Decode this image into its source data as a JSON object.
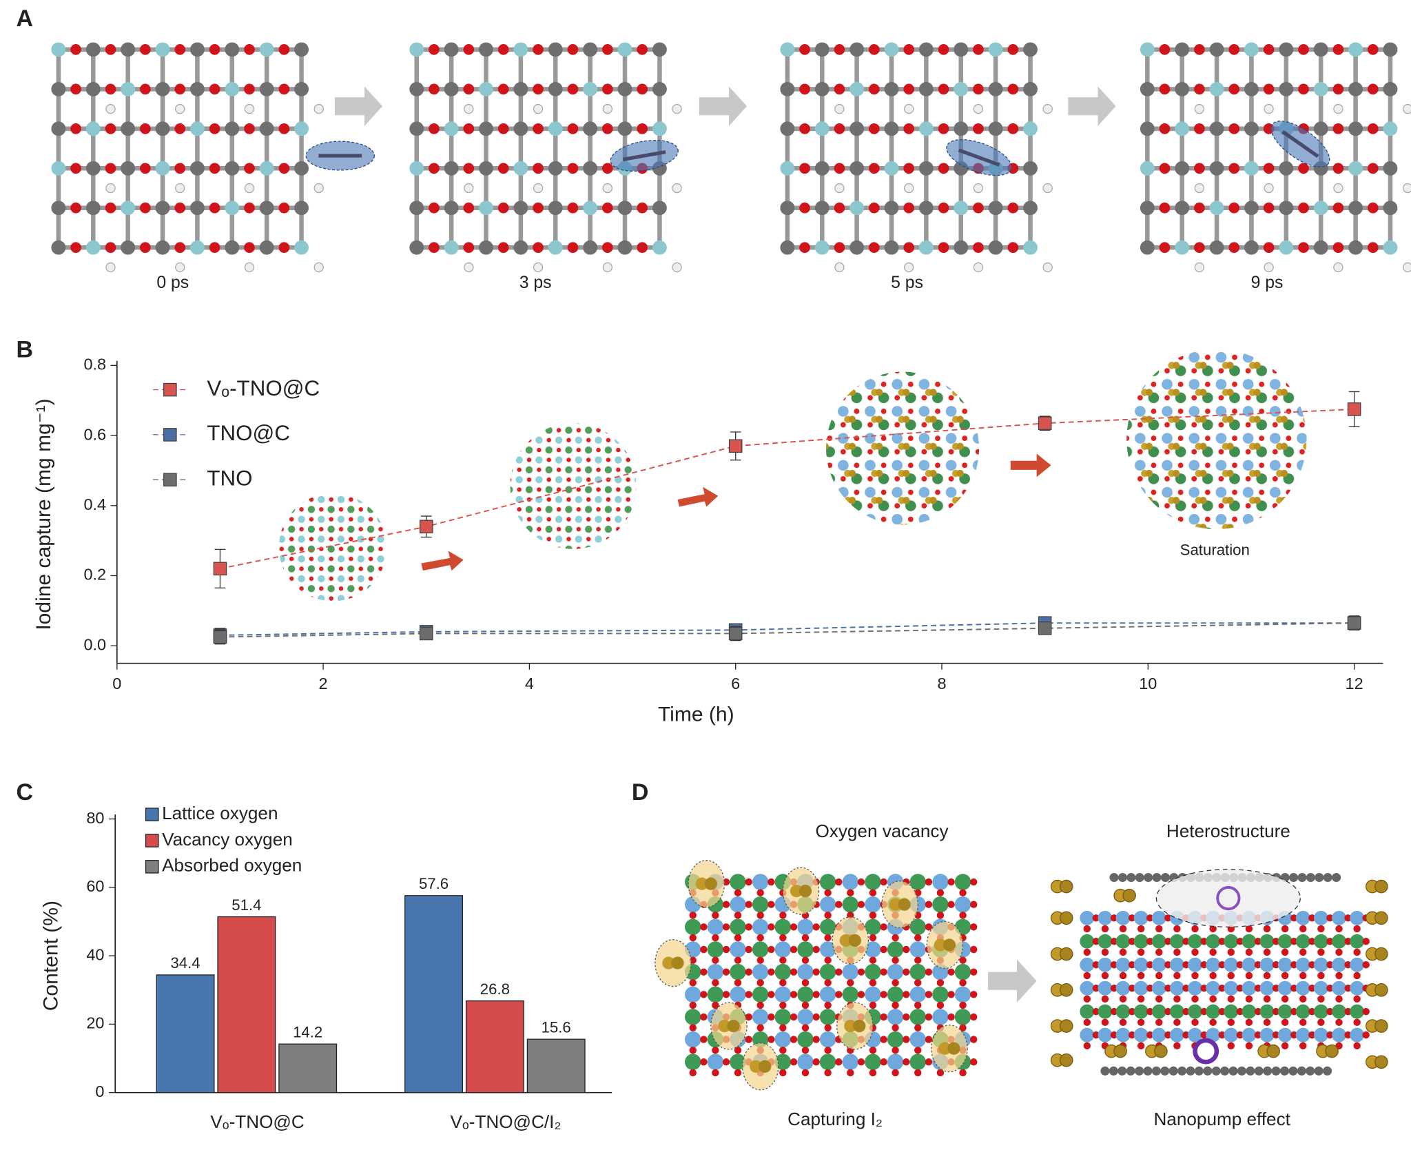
{
  "panel_labels": [
    "A",
    "B",
    "C",
    "D"
  ],
  "panel_a": {
    "labels": [
      "0 ps",
      "3 ps",
      "5 ps",
      "9 ps"
    ]
  },
  "panel_d": {
    "labels": [
      "Oxygen vacancy",
      "Heterostructure",
      "Capturing I₂",
      "Nanopump effect"
    ]
  },
  "chart_data": [
    {
      "type": "line",
      "xlabel": "Time (h)",
      "ylabel": "Iodine capture (mg mg⁻¹)",
      "x": [
        1,
        3,
        6,
        9,
        12
      ],
      "series": [
        {
          "name": "Vₒ-TNO@C",
          "color": "#d9534f",
          "values": [
            0.22,
            0.34,
            0.57,
            0.635,
            0.675
          ],
          "errors": [
            0.055,
            0.03,
            0.04,
            0.02,
            0.05
          ]
        },
        {
          "name": "TNO@C",
          "color": "#4a6fa5",
          "values": [
            0.03,
            0.04,
            0.045,
            0.065,
            0.065
          ],
          "errors": [
            0.02,
            0.01,
            0.01,
            0.01,
            0.02
          ]
        },
        {
          "name": "TNO",
          "color": "#6d6d6d",
          "values": [
            0.025,
            0.035,
            0.035,
            0.05,
            0.065
          ],
          "errors": [
            0.02,
            0.01,
            0.02,
            0.01,
            0.02
          ]
        }
      ],
      "xlim": [
        0,
        12.28
      ],
      "ylim": [
        -0.05,
        0.8
      ],
      "xticks": [
        0,
        2,
        4,
        6,
        8,
        10,
        12
      ],
      "yticks": [
        {
          "value": 0,
          "label": "0.0"
        },
        0.2,
        0.4,
        0.6,
        0.8
      ],
      "line_style": "dashed",
      "legend": "upper left",
      "annotations": [
        "Saturation"
      ]
    },
    {
      "type": "bar",
      "ylabel": "Content (%)",
      "categories": [
        "Vₒ-TNO@C",
        "Vₒ-TNO@C/I₂"
      ],
      "series": [
        {
          "name": "Lattice oxygen",
          "color": "#4a76b0",
          "values": [
            34.4,
            57.6
          ]
        },
        {
          "name": "Vacancy oxygen",
          "color": "#d64b4b",
          "values": [
            51.4,
            26.8
          ]
        },
        {
          "name": "Absorbed oxygen",
          "color": "#7f7f7f",
          "values": [
            14.2,
            15.6
          ]
        }
      ],
      "ylim": [
        0,
        80
      ],
      "yticks": [
        0,
        20,
        40,
        60,
        80
      ],
      "legend": "upper left"
    }
  ]
}
